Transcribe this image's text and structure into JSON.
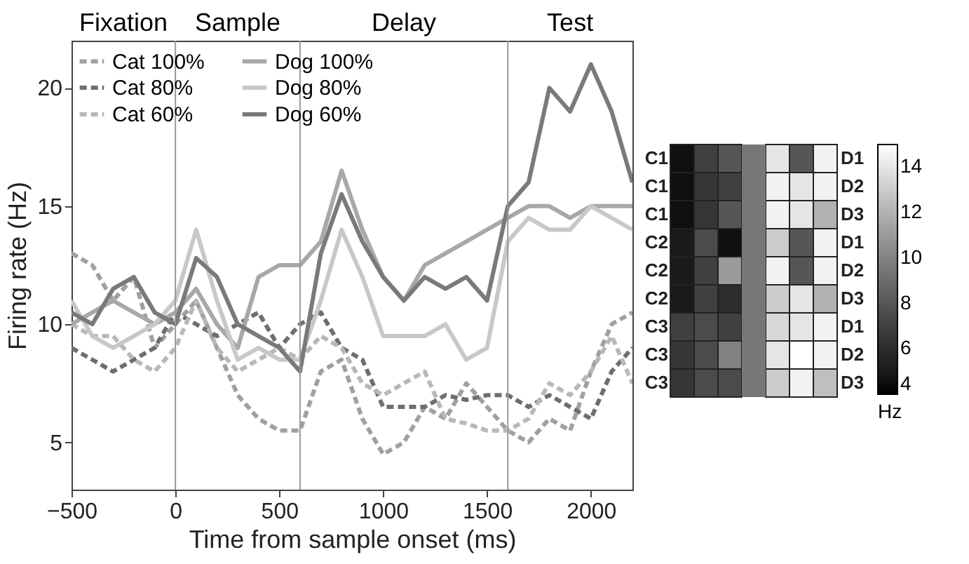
{
  "chart_data": [
    {
      "type": "line",
      "xlabel": "Time from sample onset (ms)",
      "ylabel": "Firing rate (Hz)",
      "annotations": [
        "Fixation",
        "Sample",
        "Delay",
        "Test"
      ],
      "x": [
        -500,
        -400,
        -300,
        -200,
        -100,
        0,
        100,
        200,
        300,
        400,
        500,
        600,
        700,
        800,
        900,
        1000,
        1100,
        1200,
        1300,
        1400,
        1500,
        1600,
        1700,
        1800,
        1900,
        2000,
        2100,
        2200
      ],
      "series": [
        {
          "name": "Cat 100%",
          "color": "#a0a0a0",
          "line_style": "dashed",
          "values": [
            13,
            12.5,
            11,
            12,
            9,
            10,
            11,
            9,
            7,
            6,
            5.5,
            5.5,
            8,
            8.5,
            6,
            4.5,
            5,
            6.5,
            6,
            7.5,
            6.5,
            5.5,
            5,
            6,
            5.5,
            8,
            10,
            10.5
          ]
        },
        {
          "name": "Cat 80%",
          "color": "#6e6e6e",
          "line_style": "dashed",
          "values": [
            9,
            8.5,
            8,
            8.5,
            9,
            10.5,
            10,
            9.5,
            10,
            10.5,
            9,
            10,
            10.5,
            9,
            8.5,
            6.5,
            6.5,
            6.5,
            7,
            6.8,
            7,
            7,
            6.5,
            7,
            6.5,
            6,
            8,
            9
          ]
        },
        {
          "name": "Cat 60%",
          "color": "#b8b8b8",
          "line_style": "dashed",
          "values": [
            10,
            9.5,
            9.5,
            8.5,
            8,
            9,
            11,
            9,
            8,
            8.5,
            9,
            8.5,
            9.5,
            9,
            7.5,
            7,
            7.5,
            8,
            6,
            5.8,
            5.5,
            5.5,
            6,
            7.5,
            7,
            8,
            9.5,
            7.5
          ]
        },
        {
          "name": "Dog 100%",
          "color": "#a8a8a8",
          "line_style": "solid",
          "values": [
            10,
            10.5,
            11,
            10.5,
            10,
            10.5,
            11.5,
            10,
            9,
            12,
            12.5,
            12.5,
            13.5,
            16.5,
            14,
            12,
            11,
            12.5,
            13,
            13.5,
            14,
            14.5,
            15,
            15,
            14.5,
            15,
            15,
            15
          ]
        },
        {
          "name": "Dog 80%",
          "color": "#c8c8c8",
          "line_style": "solid",
          "values": [
            11,
            9.5,
            9,
            9.5,
            10,
            11,
            14,
            11,
            8.5,
            9,
            8.5,
            8.5,
            11,
            14,
            12,
            9.5,
            9.5,
            9.5,
            10,
            8.5,
            9,
            13.5,
            14.5,
            14,
            14,
            15,
            14.5,
            14
          ]
        },
        {
          "name": "Dog 60%",
          "color": "#7a7a7a",
          "line_style": "solid",
          "values": [
            10.5,
            10,
            11.5,
            12,
            10.5,
            10,
            12.8,
            12,
            10,
            9.5,
            9,
            8,
            13,
            15.5,
            13.5,
            12,
            11,
            12,
            11.5,
            12,
            11,
            15,
            16,
            20,
            19,
            21,
            19,
            16
          ]
        }
      ],
      "xlim": [
        -500,
        2200
      ],
      "xticks": [
        -500,
        0,
        500,
        1000,
        1500,
        2000
      ],
      "ylim": [
        3,
        22
      ],
      "yticks": [
        5,
        10,
        15,
        20
      ],
      "ref_lines": [
        {
          "axis": "x",
          "value": 0,
          "color": "#999999"
        },
        {
          "axis": "x",
          "value": 600,
          "color": "#999999"
        },
        {
          "axis": "x",
          "value": 1600,
          "color": "#999999"
        }
      ],
      "legend": "top left"
    },
    {
      "type": "heatmap",
      "categories": [
        null,
        null,
        null,
        null,
        null,
        null,
        null
      ],
      "y_categories": [
        "C1",
        "C1",
        "C1",
        "C2",
        "C2",
        "C2",
        "C3",
        "C3",
        "C3"
      ],
      "y2_categories": [
        "D1",
        "D2",
        "D3",
        "D1",
        "D2",
        "D3",
        "D1",
        "D2",
        "D3"
      ],
      "cells": [
        [
          4.5,
          7,
          8,
          null,
          14,
          8,
          14.5
        ],
        [
          4.5,
          6.5,
          7,
          null,
          14.5,
          14,
          14.5
        ],
        [
          4.5,
          6.5,
          8,
          null,
          14.5,
          14,
          12
        ],
        [
          5,
          7.5,
          4.5,
          null,
          13,
          8,
          14.5
        ],
        [
          5,
          7,
          11,
          null,
          14.5,
          8,
          14.5
        ],
        [
          5,
          7,
          6,
          null,
          13,
          14,
          12
        ],
        [
          7,
          7.5,
          7,
          null,
          13.5,
          14,
          14.5
        ],
        [
          6.5,
          7.5,
          10,
          null,
          14,
          15,
          14.5
        ],
        [
          6.5,
          7.5,
          7.5,
          null,
          13,
          14.5,
          12.5
        ]
      ],
      "clim": [
        4,
        15
      ],
      "cticks": [
        4,
        6,
        8,
        10,
        12,
        14
      ],
      "clabel": "Hz"
    }
  ]
}
